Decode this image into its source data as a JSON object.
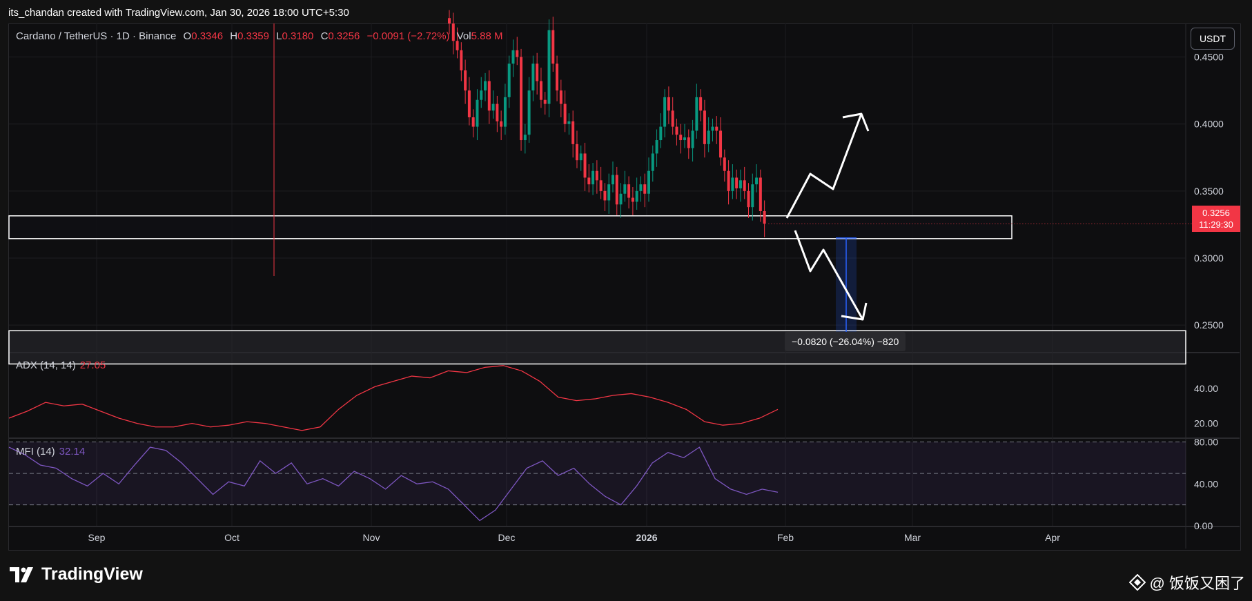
{
  "header": {
    "attribution": "its_chandan created with TradingView.com, Jan 30, 2026 18:00 UTC+5:30"
  },
  "legend": {
    "symbol": "Cardano / TetherUS · 1D · Binance",
    "open_label": "O",
    "open": "0.3346",
    "high_label": "H",
    "high": "0.3359",
    "low_label": "L",
    "low": "0.3180",
    "close_label": "C",
    "close": "0.3256",
    "change": "−0.0091 (−2.72%)",
    "vol_label": "Vol",
    "vol": "5.88 M"
  },
  "currency_button": "USDT",
  "price_label": {
    "price": "0.3256",
    "countdown": "11:29:30"
  },
  "measure_label": "−0.0820 (−26.04%) −820",
  "adx_legend": {
    "name": "ADX (14, 14)",
    "value": "27.05"
  },
  "mfi_legend": {
    "name": "MFI (14)",
    "value": "32.14"
  },
  "footer": {
    "logo_text": "TradingView",
    "watermark": "@ 饭饭又困了"
  },
  "colors": {
    "up": "#089981",
    "down": "#f23645",
    "adx": "#f23645",
    "mfi": "#7e57c2",
    "measure": "#2962ff",
    "bg": "#0e0e10"
  },
  "chart_data": [
    {
      "type": "candlestick",
      "title": "Cardano / TetherUS · 1D · Binance",
      "x_labels": [
        "Sep",
        "Oct",
        "Nov",
        "Dec",
        "2026",
        "Feb",
        "Mar",
        "Apr"
      ],
      "y_ticks": [
        "0.4500",
        "0.4000",
        "0.3500",
        "0.3000",
        "0.2500"
      ],
      "ylim": [
        0.23,
        0.475
      ],
      "ohlc_visible_from": "mid-Nov 2025",
      "candles_close": [
        0.475,
        0.462,
        0.455,
        0.44,
        0.425,
        0.405,
        0.398,
        0.418,
        0.425,
        0.432,
        0.41,
        0.415,
        0.402,
        0.398,
        0.42,
        0.445,
        0.455,
        0.45,
        0.388,
        0.392,
        0.425,
        0.445,
        0.432,
        0.418,
        0.415,
        0.47,
        0.445,
        0.425,
        0.415,
        0.4,
        0.402,
        0.385,
        0.373,
        0.378,
        0.36,
        0.355,
        0.365,
        0.358,
        0.35,
        0.343,
        0.355,
        0.362,
        0.34,
        0.348,
        0.355,
        0.345,
        0.342,
        0.35,
        0.355,
        0.348,
        0.365,
        0.378,
        0.388,
        0.398,
        0.42,
        0.41,
        0.398,
        0.392,
        0.388,
        0.39,
        0.382,
        0.395,
        0.42,
        0.41,
        0.385,
        0.395,
        0.398,
        0.395,
        0.375,
        0.365,
        0.35,
        0.36,
        0.352,
        0.358,
        0.35,
        0.338,
        0.355,
        0.36,
        0.335,
        0.3256
      ],
      "levels": [
        {
          "name": "support zone",
          "top": 0.3315,
          "bottom": 0.3145
        },
        {
          "name": "target zone",
          "top": 0.2458,
          "bottom": 0.221
        }
      ],
      "measure": {
        "from": 0.315,
        "to": 0.233,
        "change": "−0.0820 (−26.04%) −820"
      },
      "last_price": 0.3256
    },
    {
      "type": "line",
      "name": "ADX (14, 14)",
      "y_ticks": [
        "40.00",
        "20.00"
      ],
      "ylim": [
        12,
        60
      ],
      "values": [
        23,
        27,
        32,
        30,
        31,
        27,
        23,
        20,
        18,
        18,
        20,
        18,
        19,
        21,
        20,
        18,
        16,
        18,
        28,
        36,
        41,
        44,
        47,
        46,
        50,
        49,
        52,
        53,
        50,
        44,
        35,
        33,
        34,
        36,
        37,
        35,
        32,
        28,
        21,
        19,
        20,
        23,
        28
      ]
    },
    {
      "type": "line",
      "name": "MFI (14)",
      "y_ticks": [
        "80.00",
        "40.00",
        "0.00"
      ],
      "bands": {
        "upper": 80,
        "middle": 50,
        "lower": 20
      },
      "ylim": [
        0,
        83
      ],
      "values": [
        75,
        68,
        58,
        55,
        45,
        38,
        50,
        40,
        58,
        75,
        72,
        60,
        45,
        30,
        42,
        38,
        62,
        50,
        60,
        40,
        45,
        38,
        52,
        45,
        35,
        48,
        40,
        42,
        35,
        20,
        5,
        15,
        35,
        55,
        62,
        48,
        55,
        40,
        28,
        20,
        38,
        60,
        70,
        65,
        75,
        45,
        35,
        30,
        35,
        32
      ]
    }
  ]
}
